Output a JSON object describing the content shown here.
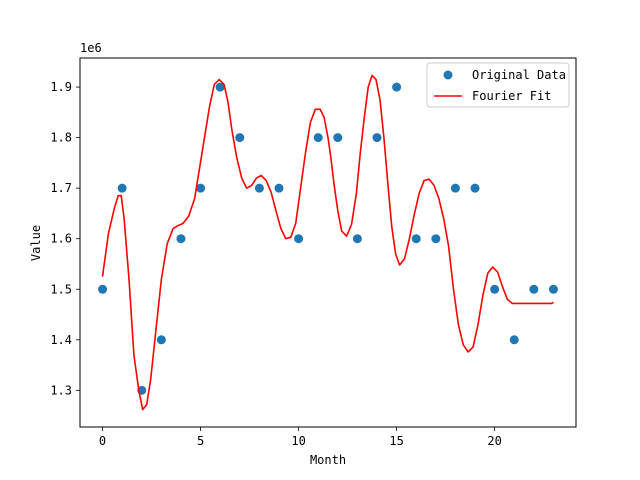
{
  "chart_data": {
    "type": "scatter",
    "title": "",
    "xlabel": "Month",
    "ylabel": "Value",
    "offset_label": "1e6",
    "xlim": [
      -1.15,
      24.15
    ],
    "ylim": [
      1.2275,
      1.9575
    ],
    "xticks": [
      0,
      5,
      10,
      15,
      20
    ],
    "xtick_labels": [
      "0",
      "5",
      "10",
      "15",
      "20"
    ],
    "yticks": [
      1.3,
      1.4,
      1.5,
      1.6,
      1.7,
      1.8,
      1.9
    ],
    "ytick_labels": [
      "1.3",
      "1.4",
      "1.5",
      "1.6",
      "1.7",
      "1.8",
      "1.9"
    ],
    "grid": false,
    "legend_position": "top-right",
    "series": [
      {
        "name": "Original Data",
        "kind": "scatter",
        "color": "#1f77b4",
        "x": [
          0,
          1,
          2,
          3,
          4,
          5,
          6,
          7,
          8,
          9,
          10,
          11,
          12,
          13,
          14,
          15,
          16,
          17,
          18,
          19,
          20,
          21,
          22,
          23
        ],
        "y": [
          1.5,
          1.7,
          1.3,
          1.4,
          1.6,
          1.7,
          1.9,
          1.8,
          1.7,
          1.7,
          1.6,
          1.8,
          1.8,
          1.6,
          1.8,
          1.9,
          1.6,
          1.6,
          1.7,
          1.7,
          1.5,
          1.4,
          1.5,
          1.5
        ]
      },
      {
        "name": "Fourier Fit",
        "kind": "line",
        "color": "#ff0000",
        "x": [
          0,
          0.3,
          0.6,
          0.8,
          0.95,
          1.1,
          1.35,
          1.6,
          1.85,
          2.05,
          2.25,
          2.45,
          2.75,
          3.0,
          3.3,
          3.6,
          3.85,
          4.1,
          4.4,
          4.7,
          4.95,
          5.2,
          5.45,
          5.7,
          5.95,
          6.2,
          6.4,
          6.6,
          6.85,
          7.1,
          7.35,
          7.6,
          7.85,
          8.1,
          8.35,
          8.6,
          8.85,
          9.1,
          9.35,
          9.6,
          9.85,
          10.1,
          10.35,
          10.6,
          10.85,
          11.1,
          11.3,
          11.5,
          11.65,
          11.8,
          12.0,
          12.2,
          12.45,
          12.7,
          12.95,
          13.15,
          13.35,
          13.55,
          13.75,
          13.95,
          14.15,
          14.35,
          14.55,
          14.75,
          14.95,
          15.15,
          15.4,
          15.65,
          15.9,
          16.15,
          16.4,
          16.65,
          16.9,
          17.15,
          17.4,
          17.65,
          17.9,
          18.15,
          18.4,
          18.65,
          18.9,
          19.15,
          19.4,
          19.65,
          19.9,
          20.15,
          20.4,
          20.65,
          20.9,
          21.15,
          21.4,
          21.65,
          21.9,
          22.15,
          22.4,
          22.65,
          22.9,
          23.0
        ],
        "y": [
          1.525,
          1.61,
          1.66,
          1.685,
          1.685,
          1.64,
          1.52,
          1.37,
          1.3,
          1.262,
          1.272,
          1.32,
          1.43,
          1.52,
          1.59,
          1.62,
          1.626,
          1.63,
          1.645,
          1.68,
          1.74,
          1.8,
          1.86,
          1.905,
          1.915,
          1.905,
          1.87,
          1.815,
          1.76,
          1.72,
          1.7,
          1.705,
          1.72,
          1.725,
          1.715,
          1.692,
          1.655,
          1.62,
          1.6,
          1.603,
          1.63,
          1.7,
          1.77,
          1.83,
          1.856,
          1.856,
          1.84,
          1.8,
          1.76,
          1.71,
          1.655,
          1.615,
          1.605,
          1.628,
          1.69,
          1.77,
          1.84,
          1.9,
          1.923,
          1.915,
          1.875,
          1.8,
          1.71,
          1.625,
          1.57,
          1.548,
          1.56,
          1.6,
          1.648,
          1.69,
          1.715,
          1.718,
          1.706,
          1.68,
          1.64,
          1.585,
          1.5,
          1.43,
          1.39,
          1.376,
          1.386,
          1.43,
          1.488,
          1.532,
          1.544,
          1.534,
          1.505,
          1.48,
          1.472,
          1.472,
          1.472,
          1.472,
          1.472,
          1.472,
          1.472,
          1.472,
          1.472,
          1.474
        ]
      }
    ]
  }
}
